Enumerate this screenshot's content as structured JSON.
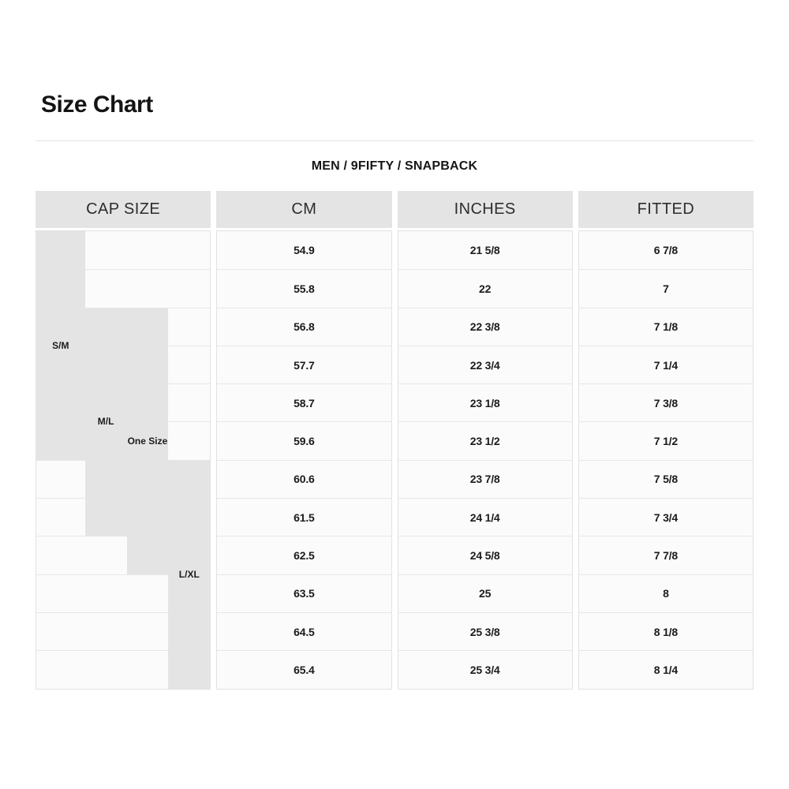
{
  "page": {
    "title": "Size Chart",
    "subtitle": "MEN / 9FIFTY / SNAPBACK"
  },
  "table": {
    "headers": [
      "CAP SIZE",
      "CM",
      "INCHES",
      "FITTED"
    ],
    "size_groups": [
      {
        "label": "S/M",
        "col": 1,
        "row_start": 1,
        "row_end": 6
      },
      {
        "label": "M/L",
        "col": 2,
        "row_start": 3,
        "row_end": 8
      },
      {
        "label": "One Size",
        "col": 3,
        "row_start": 3,
        "row_end": 9
      },
      {
        "label": "L/XL",
        "col": 4,
        "row_start": 7,
        "row_end": 12
      }
    ],
    "rows": [
      {
        "cm": "54.9",
        "inches": "21 5/8",
        "fitted": "6 7/8"
      },
      {
        "cm": "55.8",
        "inches": "22",
        "fitted": "7"
      },
      {
        "cm": "56.8",
        "inches": "22 3/8",
        "fitted": "7 1/8"
      },
      {
        "cm": "57.7",
        "inches": "22 3/4",
        "fitted": "7 1/4"
      },
      {
        "cm": "58.7",
        "inches": "23 1/8",
        "fitted": "7 3/8"
      },
      {
        "cm": "59.6",
        "inches": "23 1/2",
        "fitted": "7 1/2"
      },
      {
        "cm": "60.6",
        "inches": "23 7/8",
        "fitted": "7 5/8"
      },
      {
        "cm": "61.5",
        "inches": "24 1/4",
        "fitted": "7 3/4"
      },
      {
        "cm": "62.5",
        "inches": "24 5/8",
        "fitted": "7 7/8"
      },
      {
        "cm": "63.5",
        "inches": "25",
        "fitted": "8"
      },
      {
        "cm": "64.5",
        "inches": "25 3/8",
        "fitted": "8 1/8"
      },
      {
        "cm": "65.4",
        "inches": "25 3/4",
        "fitted": "8 1/4"
      }
    ]
  },
  "colors": {
    "block_gray": "#e4e4e4",
    "cell_bg": "#fbfbfb",
    "border": "#e2e2e2",
    "text": "#1b1b1b"
  }
}
